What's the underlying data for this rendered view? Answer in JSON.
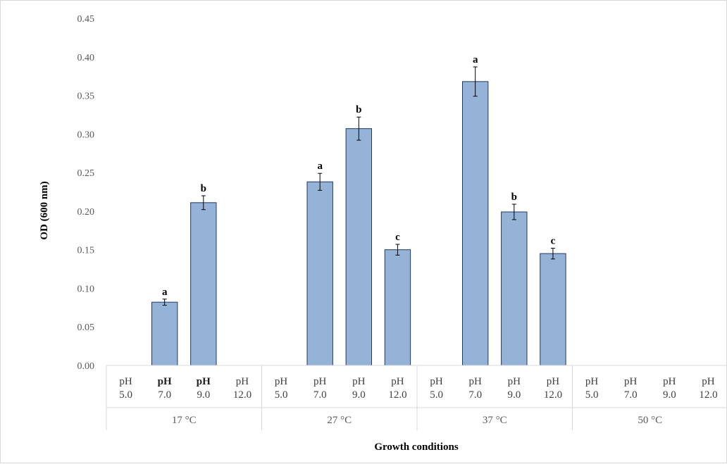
{
  "chart_data": {
    "type": "bar",
    "title": "",
    "xlabel": "Growth conditions",
    "ylabel": "OD (600 nm)",
    "ylim": [
      0,
      0.45
    ],
    "yticks": [
      "0.00",
      "0.05",
      "0.10",
      "0.15",
      "0.20",
      "0.25",
      "0.30",
      "0.35",
      "0.40",
      "0.45"
    ],
    "grid": false,
    "bar_color": "#95b3d7",
    "bar_edge_color": "#1f3864",
    "groups": [
      {
        "label": "17 °C",
        "categories": [
          {
            "ph": "pH",
            "value_label": "5.0",
            "bold": false
          },
          {
            "ph": "pH",
            "value_label": "7.0",
            "bold": true
          },
          {
            "ph": "pH",
            "value_label": "9.0",
            "bold": true
          },
          {
            "ph": "pH",
            "value_label": "12.0",
            "bold": false
          }
        ],
        "values": [
          null,
          0.082,
          0.211,
          null
        ],
        "errors": [
          null,
          0.004,
          0.009,
          null
        ],
        "letters": [
          "",
          "a",
          "b",
          ""
        ]
      },
      {
        "label": "27 °C",
        "categories": [
          {
            "ph": "pH",
            "value_label": "5.0",
            "bold": false
          },
          {
            "ph": "pH",
            "value_label": "7.0",
            "bold": false
          },
          {
            "ph": "pH",
            "value_label": "9.0",
            "bold": false
          },
          {
            "ph": "pH",
            "value_label": "12.0",
            "bold": false
          }
        ],
        "values": [
          null,
          0.238,
          0.307,
          0.15
        ],
        "errors": [
          null,
          0.011,
          0.015,
          0.007
        ],
        "letters": [
          "",
          "a",
          "b",
          "c"
        ]
      },
      {
        "label": "37 °C",
        "categories": [
          {
            "ph": "pH",
            "value_label": "5.0",
            "bold": false
          },
          {
            "ph": "pH",
            "value_label": "7.0",
            "bold": false
          },
          {
            "ph": "pH",
            "value_label": "9.0",
            "bold": false
          },
          {
            "ph": "pH",
            "value_label": "12.0",
            "bold": false
          }
        ],
        "values": [
          null,
          0.368,
          0.199,
          0.145
        ],
        "errors": [
          null,
          0.019,
          0.01,
          0.007
        ],
        "letters": [
          "",
          "a",
          "b",
          "c"
        ]
      },
      {
        "label": "50 °C",
        "categories": [
          {
            "ph": "pH",
            "value_label": "5.0",
            "bold": false
          },
          {
            "ph": "pH",
            "value_label": "7.0",
            "bold": false
          },
          {
            "ph": "pH",
            "value_label": "9.0",
            "bold": false
          },
          {
            "ph": "pH",
            "value_label": "12.0",
            "bold": false
          }
        ],
        "values": [
          null,
          null,
          null,
          null
        ],
        "errors": [
          null,
          null,
          null,
          null
        ],
        "letters": [
          "",
          "",
          "",
          ""
        ]
      }
    ]
  }
}
